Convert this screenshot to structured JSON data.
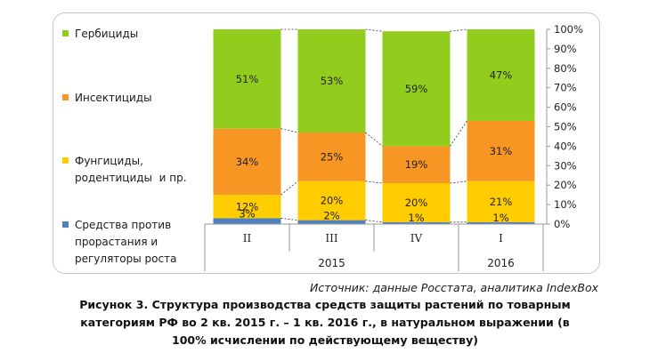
{
  "chart_data": {
    "type": "bar",
    "stacked_percent": true,
    "categories": [
      "II",
      "III",
      "IV",
      "I"
    ],
    "groups": [
      {
        "label": "2015",
        "categories": [
          "II",
          "III",
          "IV"
        ]
      },
      {
        "label": "2016",
        "categories": [
          "I"
        ]
      }
    ],
    "series": [
      {
        "name": "Средства против прорастания и регуляторы роста",
        "color": "#4f81bd",
        "values": [
          3,
          2,
          1,
          1
        ],
        "labels": [
          "3%",
          "2%",
          "1%",
          "1%"
        ]
      },
      {
        "name": "Фунгициды, родентициды  и пр.",
        "color": "#ffcc00",
        "values": [
          12,
          20,
          20,
          21
        ],
        "labels": [
          "12%",
          "20%",
          "20%",
          "21%"
        ]
      },
      {
        "name": "Инсектициды",
        "color": "#f79622",
        "values": [
          34,
          25,
          19,
          31
        ],
        "labels": [
          "34%",
          "25%",
          "19%",
          "31%"
        ]
      },
      {
        "name": "Гербициды",
        "color": "#92cd1d",
        "values": [
          51,
          53,
          59,
          47
        ],
        "labels": [
          "51%",
          "53%",
          "59%",
          "47%"
        ]
      }
    ],
    "yticks": [
      "0%",
      "10%",
      "20%",
      "30%",
      "40%",
      "50%",
      "60%",
      "70%",
      "80%",
      "90%",
      "100%"
    ],
    "ylim": [
      0,
      100
    ],
    "yaxis_position": "right",
    "legend_position": "left",
    "series_lines": true
  },
  "legend": [
    {
      "label": "Гербициды",
      "color": "#92cd1d"
    },
    {
      "label": "Инсектициды",
      "color": "#f79622"
    },
    {
      "label": "Фунгициды,\nродентициды  и пр.",
      "color": "#ffcc00"
    },
    {
      "label": "Средства против\nпрорастания и\nрегуляторы роста",
      "color": "#4f81bd"
    }
  ],
  "source": "Источник: данные Росстата, аналитика IndexBox",
  "caption": [
    "Рисунок 3. Структура производства средств защиты растений по товарным",
    "категориям РФ во 2 кв. 2015 г. – 1 кв. 2016 г., в натуральном выражении (в",
    "100% исчислении  по действующему веществу)"
  ]
}
